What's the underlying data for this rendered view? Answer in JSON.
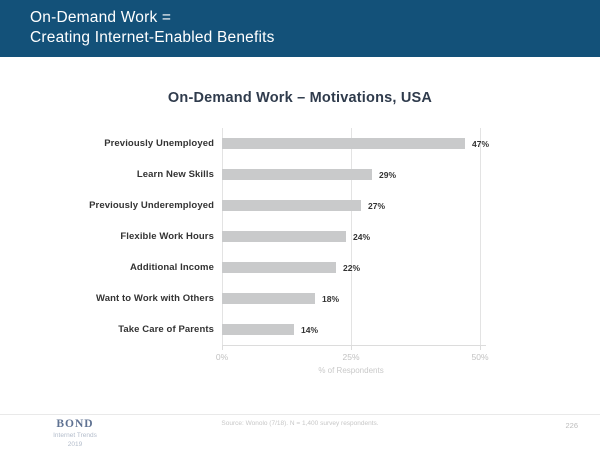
{
  "header": {
    "title_line1": "On-Demand Work =",
    "title_line2": "Creating Internet-Enabled Benefits",
    "bg_color": "#135179",
    "text_color": "#ffffff"
  },
  "chart_data": {
    "type": "bar",
    "orientation": "horizontal",
    "title": "On-Demand Work – Motivations, USA",
    "categories": [
      "Previously Unemployed",
      "Learn New Skills",
      "Previously Underemployed",
      "Flexible Work Hours",
      "Additional Income",
      "Want to Work with Others",
      "Take Care of Parents"
    ],
    "values": [
      47,
      29,
      27,
      24,
      22,
      18,
      14
    ],
    "value_labels": [
      "47%",
      "29%",
      "27%",
      "24%",
      "22%",
      "18%",
      "14%"
    ],
    "xlabel": "% of Respondents",
    "xlim": [
      0,
      50
    ],
    "xticks": [
      0,
      25,
      50
    ],
    "xtick_labels": [
      "0%",
      "25%",
      "50%"
    ],
    "bar_color": "#c9cacb",
    "grid": true,
    "legend": "none"
  },
  "footer": {
    "source": "Source: Wonolo (7/18). N = 1,400 survey respondents.",
    "page_number": "226",
    "logo": {
      "brand": "BOND",
      "line2": "Internet Trends",
      "line3": "2019"
    }
  }
}
